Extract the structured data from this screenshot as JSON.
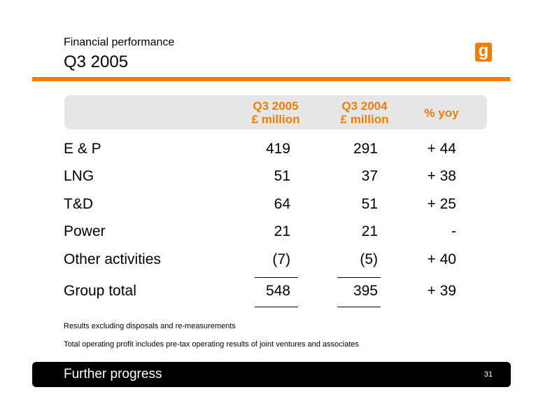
{
  "header": {
    "subtitle": "Financial performance",
    "title": "Q3 2005",
    "logo_text": "g"
  },
  "colors": {
    "accent": "#f07d00",
    "table_head_bg": "#e6e6e6",
    "footer_bg": "#000000"
  },
  "table": {
    "columns": [
      {
        "line1": "Q3 2005",
        "line2": "£ million"
      },
      {
        "line1": "Q3 2004",
        "line2": "£ million"
      },
      {
        "line1": "% yoy",
        "line2": ""
      }
    ],
    "rows": [
      {
        "label": "E & P",
        "q3_2005": "419",
        "q3_2004": "291",
        "yoy": "+ 44"
      },
      {
        "label": "LNG",
        "q3_2005": "51",
        "q3_2004": "37",
        "yoy": "+ 38"
      },
      {
        "label": "T&D",
        "q3_2005": "64",
        "q3_2004": "51",
        "yoy": "+ 25"
      },
      {
        "label": "Power",
        "q3_2005": "21",
        "q3_2004": "21",
        "yoy": "-"
      },
      {
        "label": "Other activities",
        "q3_2005": "(7)",
        "q3_2004": "(5)",
        "yoy": "+ 40"
      }
    ],
    "total": {
      "label": "Group total",
      "q3_2005": "548",
      "q3_2004": "395",
      "yoy": "+ 39"
    }
  },
  "notes": [
    "Results excluding disposals and re-measurements",
    "Total operating profit includes pre-tax operating results of joint ventures and associates"
  ],
  "footer": {
    "text": "Further progress",
    "page_number": "31"
  }
}
